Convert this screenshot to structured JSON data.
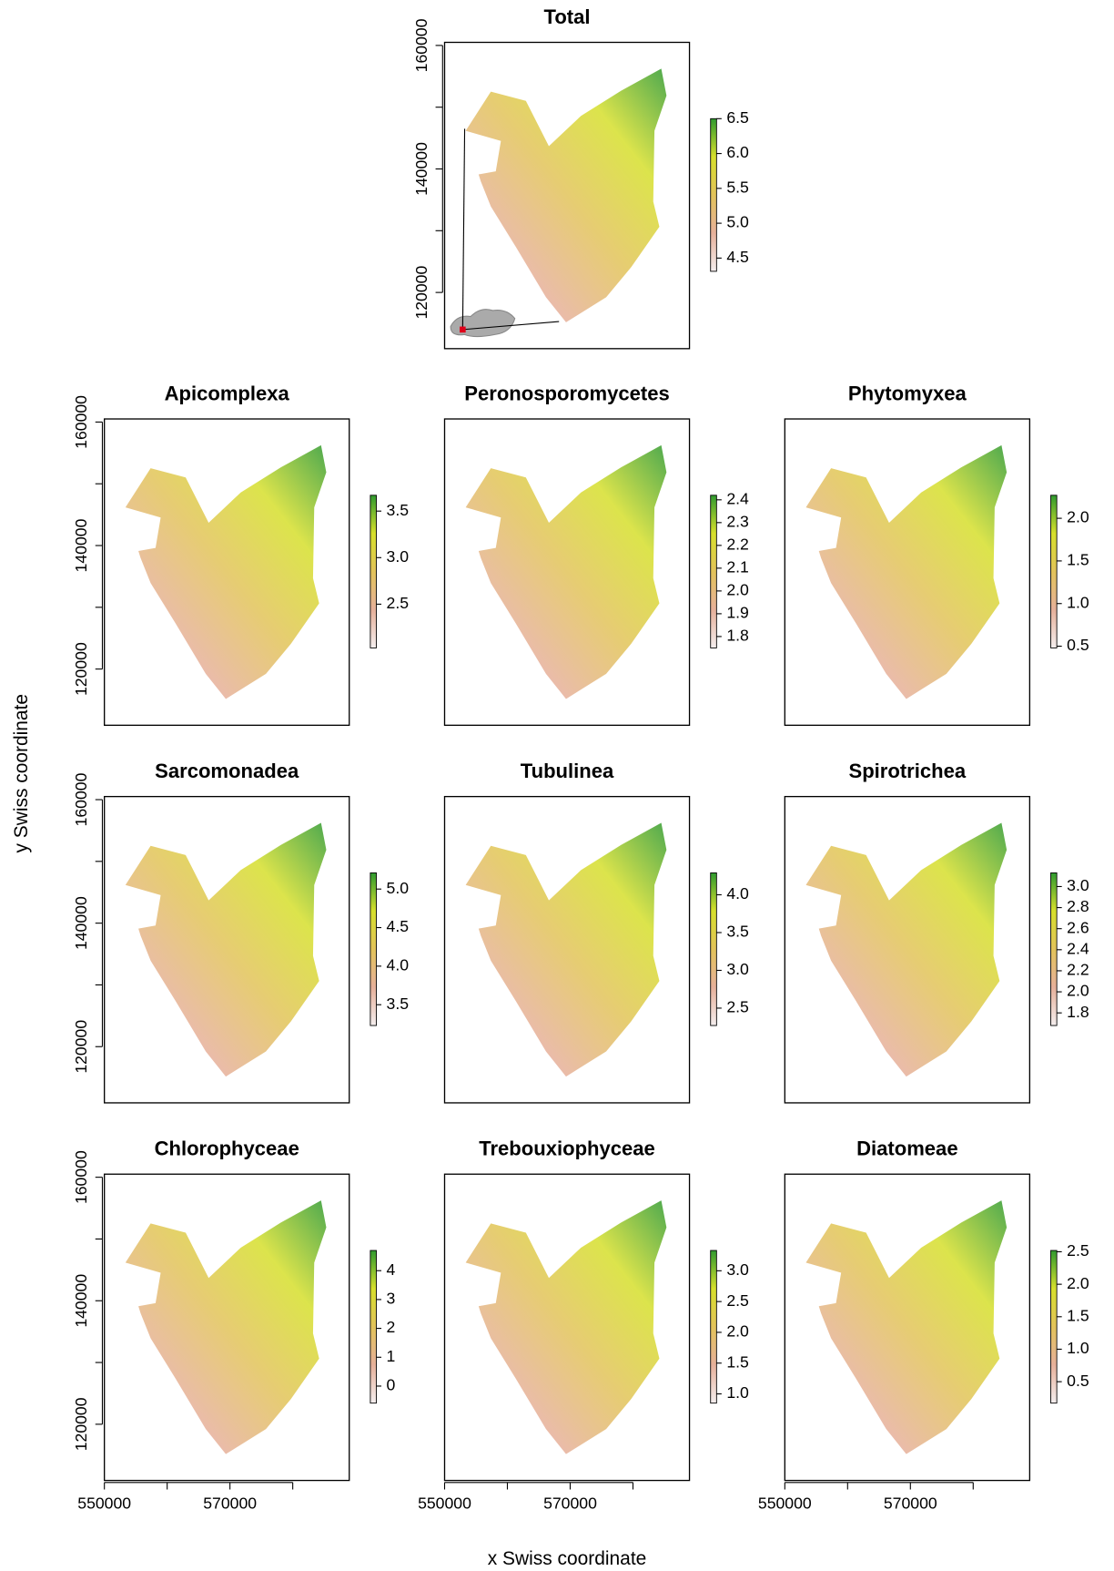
{
  "figure": {
    "xlabel": "x Swiss coordinate",
    "ylabel": "y Swiss coordinate",
    "palette": [
      "#f4eeee",
      "#e6b09a",
      "#e2c35a",
      "#d6df2c",
      "#2f9a2f"
    ]
  },
  "chart_data": [
    {
      "type": "raster",
      "title": "Total",
      "ylim": [
        110900,
        160500
      ],
      "yticks": [
        120000,
        {
          "value": 130000,
          "label": null
        },
        140000,
        {
          "value": 150000,
          "label": null
        },
        160000
      ],
      "colorbar": {
        "lim": [
          4.31,
          6.5
        ],
        "ticks": [
          4.5,
          {
            "value": 5,
            "label": "5.0"
          },
          5.5,
          {
            "value": 6,
            "label": "6.0"
          },
          6.5
        ]
      }
    },
    {
      "type": "raster",
      "title": "Apicomplexa",
      "ylim": [
        110900,
        160500
      ],
      "yticks": [
        120000,
        {
          "value": 130000,
          "label": null
        },
        140000,
        {
          "value": 150000,
          "label": null
        },
        160000
      ],
      "colorbar": {
        "lim": [
          2.03,
          3.67
        ],
        "ticks": [
          2.5,
          {
            "value": 3,
            "label": "3.0"
          },
          3.5
        ]
      }
    },
    {
      "type": "raster",
      "title": "Peronosporomycetes",
      "colorbar": {
        "lim": [
          1.75,
          2.42
        ],
        "ticks": [
          1.8,
          1.9,
          {
            "value": 2,
            "label": "2.0"
          },
          2.1,
          2.2,
          2.3,
          2.4
        ]
      }
    },
    {
      "type": "raster",
      "title": "Phytomyxea",
      "colorbar": {
        "lim": [
          0.48,
          2.27
        ],
        "ticks": [
          0.5,
          {
            "value": 1,
            "label": "1.0"
          },
          1.5,
          {
            "value": 2,
            "label": "2.0"
          }
        ]
      }
    },
    {
      "type": "raster",
      "title": "Sarcomonadea",
      "ylim": [
        110900,
        160500
      ],
      "yticks": [
        120000,
        {
          "value": 130000,
          "label": null
        },
        140000,
        {
          "value": 150000,
          "label": null
        },
        160000
      ],
      "colorbar": {
        "lim": [
          3.23,
          5.21
        ],
        "ticks": [
          3.5,
          {
            "value": 4,
            "label": "4.0"
          },
          4.5,
          {
            "value": 5,
            "label": "5.0"
          }
        ]
      }
    },
    {
      "type": "raster",
      "title": "Tubulinea",
      "colorbar": {
        "lim": [
          2.27,
          4.29
        ],
        "ticks": [
          2.5,
          {
            "value": 3,
            "label": "3.0"
          },
          3.5,
          {
            "value": 4,
            "label": "4.0"
          }
        ]
      }
    },
    {
      "type": "raster",
      "title": "Spirotrichea",
      "colorbar": {
        "lim": [
          1.68,
          3.13
        ],
        "ticks": [
          1.8,
          {
            "value": 2,
            "label": "2.0"
          },
          2.2,
          2.4,
          2.6,
          2.8,
          {
            "value": 3,
            "label": "3.0"
          }
        ]
      }
    },
    {
      "type": "raster",
      "title": "Chlorophyceae",
      "ylim": [
        110900,
        160500
      ],
      "xlim": [
        550000,
        589000
      ],
      "yticks": [
        120000,
        {
          "value": 130000,
          "label": null
        },
        140000,
        {
          "value": 150000,
          "label": null
        },
        160000
      ],
      "xticks": [
        550000,
        {
          "value": 560000,
          "label": null
        },
        570000,
        {
          "value": 580000,
          "label": null
        }
      ],
      "colorbar": {
        "lim": [
          -0.59,
          4.7
        ],
        "ticks": [
          0,
          1,
          2,
          3,
          4
        ]
      }
    },
    {
      "type": "raster",
      "title": "Trebouxiophyceae",
      "xlim": [
        550000,
        589000
      ],
      "xticks": [
        550000,
        {
          "value": 560000,
          "label": null
        },
        570000,
        {
          "value": 580000,
          "label": null
        }
      ],
      "colorbar": {
        "lim": [
          0.85,
          3.33
        ],
        "ticks": [
          {
            "value": 1,
            "label": "1.0"
          },
          1.5,
          {
            "value": 2,
            "label": "2.0"
          },
          2.5,
          {
            "value": 3,
            "label": "3.0"
          }
        ]
      }
    },
    {
      "type": "raster",
      "title": "Diatomeae",
      "xlim": [
        550000,
        589000
      ],
      "xticks": [
        550000,
        {
          "value": 560000,
          "label": null
        },
        570000,
        {
          "value": 580000,
          "label": null
        }
      ],
      "colorbar": {
        "lim": [
          0.17,
          2.52
        ],
        "ticks": [
          0.5,
          {
            "value": 1,
            "label": "1.0"
          },
          1.5,
          {
            "value": 2,
            "label": "2.0"
          },
          2.5
        ]
      }
    }
  ]
}
